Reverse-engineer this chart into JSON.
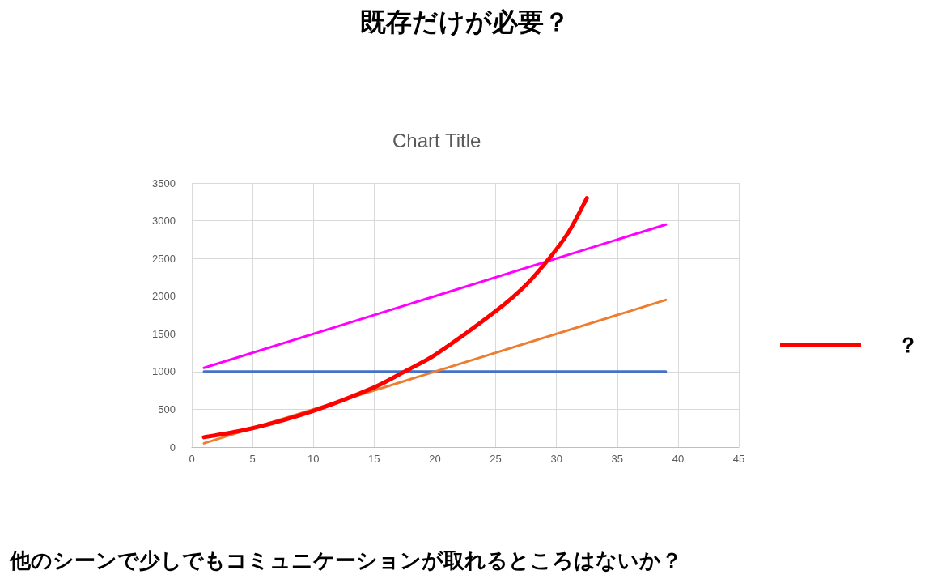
{
  "chart_data": {
    "type": "line",
    "title": "既存だけが必要？",
    "subtitle": "Chart Title",
    "annotations": [
      "他のシーンで少しでもコミュニケーションが取れるところはないか？"
    ],
    "xlim": [
      0,
      45
    ],
    "xticks": [
      0,
      5,
      10,
      15,
      20,
      25,
      30,
      35,
      40,
      45
    ],
    "ylim": [
      0,
      3500
    ],
    "yticks": [
      0,
      500,
      1000,
      1500,
      2000,
      2500,
      3000,
      3500
    ],
    "grid": true,
    "legend": "right",
    "marker": "none",
    "series": [
      {
        "color": "#4472c4",
        "x": [
          1,
          39
        ],
        "values": [
          1000,
          1000
        ]
      },
      {
        "color": "#ed7d31",
        "x": [
          1,
          39
        ],
        "values": [
          50,
          1950
        ]
      },
      {
        "color": "#ff00ff",
        "x": [
          1,
          39
        ],
        "values": [
          1050,
          2950
        ]
      },
      {
        "name": "？",
        "color": "#ff0000",
        "x": [
          1,
          5,
          10,
          15,
          17.5,
          20,
          25,
          27.5,
          29.5,
          31,
          32.5
        ],
        "values": [
          130,
          250,
          480,
          790,
          1000,
          1220,
          1800,
          2150,
          2520,
          2850,
          3300
        ]
      }
    ]
  }
}
